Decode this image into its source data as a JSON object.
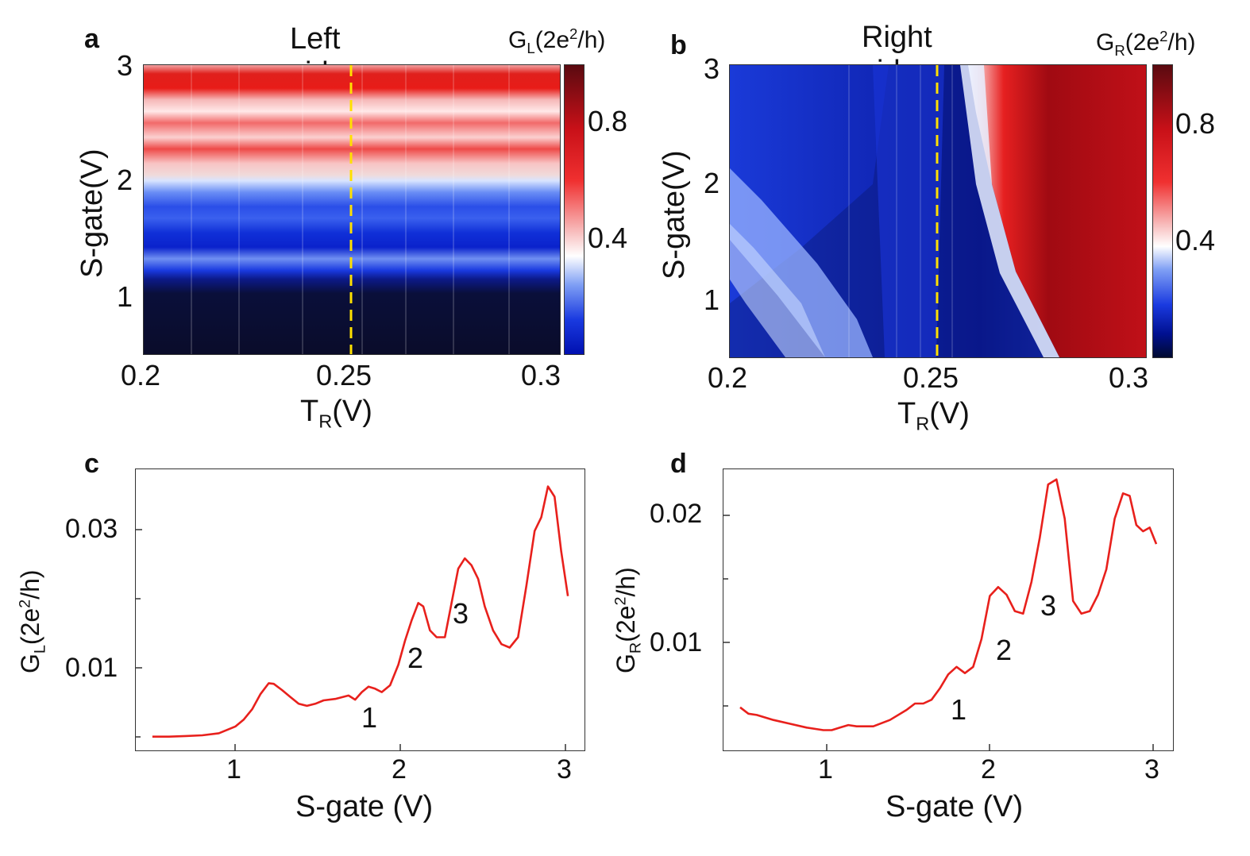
{
  "panels": {
    "a": {
      "label": "a",
      "title": "Left side",
      "colorbar_title": "G",
      "colorbar_sub": "L",
      "colorbar_unit_pre": "(2e",
      "colorbar_unit_sup": "2",
      "colorbar_unit_post": "/h)",
      "colorbar_ticks": [
        "0.8",
        "0.4"
      ],
      "yticks": [
        "3",
        "2",
        "1"
      ],
      "xticks": [
        "0.2",
        "0.25",
        "0.3"
      ],
      "ylabel": "S-gate(V)",
      "xlabel_pre": "T",
      "xlabel_sub": "R",
      "xlabel_post": "(V)"
    },
    "b": {
      "label": "b",
      "title": "Right side",
      "colorbar_title": "G",
      "colorbar_sub": "R",
      "colorbar_unit_pre": "(2e",
      "colorbar_unit_sup": "2",
      "colorbar_unit_post": "/h)",
      "colorbar_ticks": [
        "0.8",
        "0.4"
      ],
      "yticks": [
        "3",
        "2",
        "1"
      ],
      "xticks": [
        "0.2",
        "0.25",
        "0.3"
      ],
      "ylabel": "S-gate(V)",
      "xlabel_pre": "T",
      "xlabel_sub": "R",
      "xlabel_post": "(V)"
    },
    "c": {
      "label": "c",
      "ylabel_pre": "G",
      "ylabel_sub": "L",
      "ylabel_mid": "(2e",
      "ylabel_sup": "2",
      "ylabel_post": "/h)",
      "yticks": [
        "0.03",
        "0.01"
      ],
      "xticks": [
        "1",
        "2",
        "3"
      ],
      "xlabel": "S-gate (V)",
      "annotations": [
        "1",
        "2",
        "3"
      ]
    },
    "d": {
      "label": "d",
      "ylabel_pre": "G",
      "ylabel_sub": "R",
      "ylabel_mid": "(2e",
      "ylabel_sup": "2",
      "ylabel_post": "/h)",
      "yticks": [
        "0.02",
        "0.01"
      ],
      "xticks": [
        "1",
        "2",
        "3"
      ],
      "xlabel": "S-gate (V)",
      "annotations": [
        "1",
        "2",
        "3"
      ]
    }
  },
  "colors": {
    "line": "#e8201c",
    "dashed": "#ffe000"
  },
  "chart_data": [
    {
      "type": "heatmap",
      "panel": "a",
      "title": "Left side",
      "xlabel": "T_R(V)",
      "ylabel": "S-gate(V)",
      "xlim": [
        0.2,
        0.3
      ],
      "ylim": [
        0.5,
        3.0
      ],
      "zlim": [
        0.0,
        1.0
      ],
      "colorbar_label": "G_L(2e^2/h)",
      "marker_line_x": 0.25
    },
    {
      "type": "heatmap",
      "panel": "b",
      "title": "Right side",
      "xlabel": "T_R(V)",
      "ylabel": "S-gate(V)",
      "xlim": [
        0.2,
        0.3
      ],
      "ylim": [
        0.5,
        3.0
      ],
      "zlim": [
        0.0,
        1.0
      ],
      "colorbar_label": "G_R(2e^2/h)",
      "marker_line_x": 0.25
    },
    {
      "type": "line",
      "panel": "c",
      "xlabel": "S-gate (V)",
      "ylabel": "G_L(2e^2/h)",
      "xlim": [
        0.4,
        3.1
      ],
      "ylim": [
        0.0,
        0.041
      ],
      "x": [
        0.5,
        0.6,
        0.7,
        0.8,
        0.9,
        1.0,
        1.05,
        1.1,
        1.15,
        1.2,
        1.23,
        1.28,
        1.33,
        1.38,
        1.43,
        1.48,
        1.53,
        1.6,
        1.68,
        1.72,
        1.76,
        1.8,
        1.84,
        1.88,
        1.93,
        1.98,
        2.02,
        2.06,
        2.1,
        2.13,
        2.17,
        2.21,
        2.26,
        2.3,
        2.34,
        2.38,
        2.42,
        2.46,
        2.5,
        2.55,
        2.6,
        2.65,
        2.7,
        2.75,
        2.8,
        2.84,
        2.88,
        2.92,
        2.96,
        3.0
      ],
      "y": [
        0.002,
        0.002,
        0.0021,
        0.0022,
        0.0025,
        0.0035,
        0.0045,
        0.006,
        0.0082,
        0.0098,
        0.0097,
        0.0088,
        0.0078,
        0.0068,
        0.0065,
        0.0068,
        0.0073,
        0.0075,
        0.008,
        0.0074,
        0.0085,
        0.0093,
        0.009,
        0.0085,
        0.0095,
        0.0125,
        0.016,
        0.019,
        0.0215,
        0.021,
        0.0175,
        0.0165,
        0.0165,
        0.0215,
        0.0265,
        0.028,
        0.027,
        0.025,
        0.021,
        0.0175,
        0.0155,
        0.015,
        0.0165,
        0.024,
        0.032,
        0.034,
        0.0385,
        0.037,
        0.029,
        0.0225
      ]
    },
    {
      "type": "line",
      "panel": "d",
      "xlabel": "S-gate (V)",
      "ylabel": "G_R(2e^2/h)",
      "xlim": [
        0.4,
        3.1
      ],
      "ylim": [
        0.0012,
        0.0234
      ],
      "x": [
        0.5,
        0.55,
        0.6,
        0.7,
        0.8,
        0.9,
        1.0,
        1.05,
        1.1,
        1.15,
        1.2,
        1.3,
        1.4,
        1.5,
        1.55,
        1.6,
        1.65,
        1.7,
        1.75,
        1.8,
        1.85,
        1.9,
        1.95,
        2.0,
        2.05,
        2.1,
        2.15,
        2.2,
        2.25,
        2.3,
        2.35,
        2.4,
        2.45,
        2.5,
        2.55,
        2.6,
        2.65,
        2.7,
        2.75,
        2.8,
        2.84,
        2.88,
        2.92,
        2.96,
        3.0
      ],
      "y": [
        0.0046,
        0.0041,
        0.004,
        0.0036,
        0.0033,
        0.003,
        0.0028,
        0.0028,
        0.003,
        0.0032,
        0.0031,
        0.0031,
        0.0036,
        0.0044,
        0.0049,
        0.0049,
        0.0052,
        0.0061,
        0.0072,
        0.0078,
        0.0073,
        0.0078,
        0.01,
        0.0134,
        0.0141,
        0.0135,
        0.0122,
        0.012,
        0.0145,
        0.018,
        0.0222,
        0.0226,
        0.0195,
        0.013,
        0.012,
        0.0122,
        0.0135,
        0.0155,
        0.0195,
        0.0215,
        0.0213,
        0.019,
        0.0185,
        0.0188,
        0.0175
      ]
    }
  ]
}
